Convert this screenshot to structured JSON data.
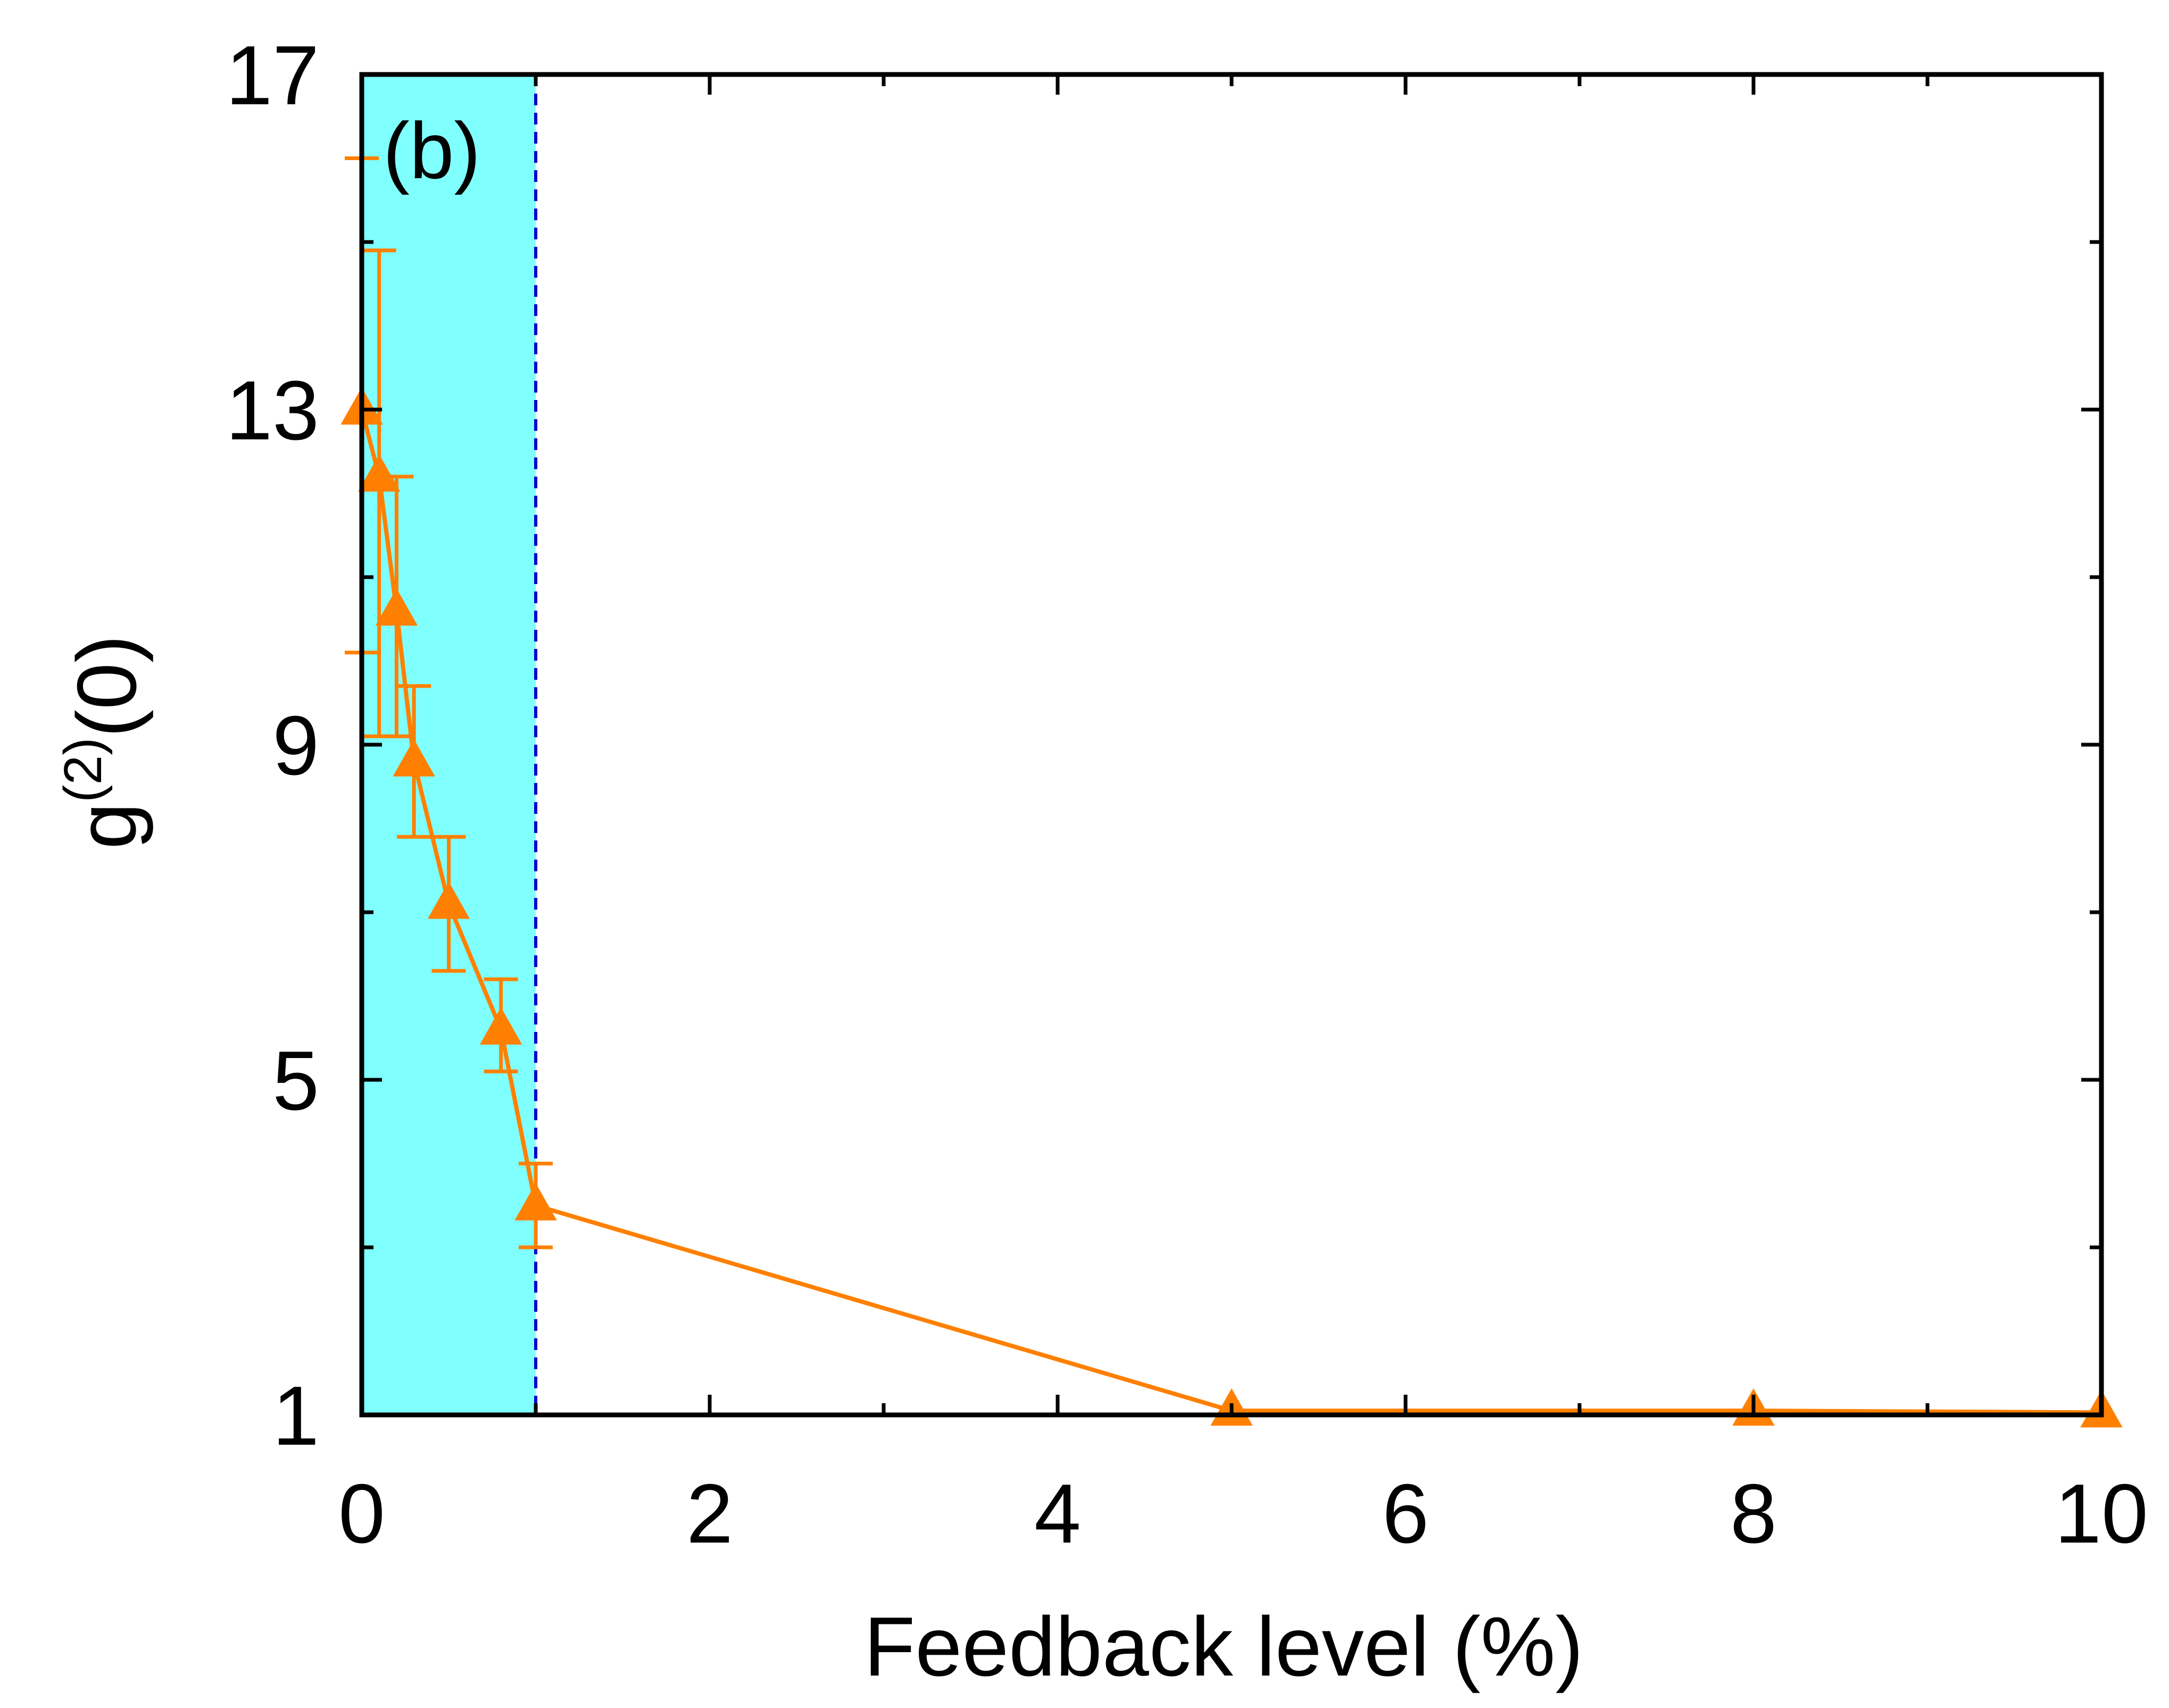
{
  "chart_data": {
    "type": "line",
    "panel_label": "(b)",
    "xlabel": "Feedback level (%)",
    "ylabel": {
      "base": "g",
      "superscript": "(2)",
      "suffix": "(0)"
    },
    "xlim": [
      0,
      10
    ],
    "ylim": [
      1,
      17
    ],
    "x_ticks": [
      0,
      2,
      4,
      6,
      8,
      10
    ],
    "x_tick_labels": [
      "0",
      "2",
      "4",
      "6",
      "8",
      "10"
    ],
    "x_minor_ticks": [
      1,
      3,
      5,
      7,
      9
    ],
    "y_ticks": [
      1,
      5,
      9,
      13,
      17
    ],
    "y_tick_labels": [
      "1",
      "5",
      "9",
      "13",
      "17"
    ],
    "y_minor_ticks": [
      3,
      7,
      11,
      15
    ],
    "grid": false,
    "shaded_region": {
      "x_start": 0,
      "x_end": 1,
      "color": "#80ffff"
    },
    "reference_line": {
      "x": 1,
      "style": "dashed",
      "color": "#0000cc"
    },
    "colors": {
      "series": "#ff8000",
      "axis": "#000000"
    },
    "series": [
      {
        "marker": "triangle-up",
        "points": [
          {
            "x": 0.0,
            "y": 13.0,
            "err_low": 10.1,
            "err_high": 16.0
          },
          {
            "x": 0.1,
            "y": 12.2,
            "err_low": 9.1,
            "err_high": 14.9
          },
          {
            "x": 0.2,
            "y": 10.6,
            "err_low": 9.1,
            "err_high": 12.2
          },
          {
            "x": 0.3,
            "y": 8.8,
            "err_low": 7.9,
            "err_high": 9.7
          },
          {
            "x": 0.5,
            "y": 7.1,
            "err_low": 6.3,
            "err_high": 7.9
          },
          {
            "x": 0.8,
            "y": 5.6,
            "err_low": 5.1,
            "err_high": 6.2
          },
          {
            "x": 1.0,
            "y": 3.5,
            "err_low": 3.0,
            "err_high": 4.0
          },
          {
            "x": 5.0,
            "y": 1.05
          },
          {
            "x": 8.0,
            "y": 1.05
          },
          {
            "x": 10.0,
            "y": 1.03
          }
        ]
      }
    ]
  }
}
